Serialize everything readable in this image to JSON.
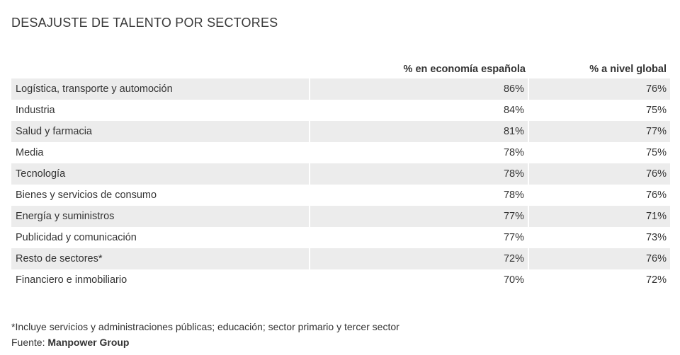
{
  "chart_data": {
    "type": "table",
    "title": "DESAJUSTE DE TALENTO POR SECTORES",
    "columns": [
      "",
      "% en economía española",
      "% a nivel global"
    ],
    "series": [
      {
        "name": "% en economía española",
        "unit": "%"
      },
      {
        "name": "% a nivel global",
        "unit": "%"
      }
    ],
    "rows": [
      {
        "sector": "Logística, transporte y automoción",
        "spain": "86%",
        "global": "76%"
      },
      {
        "sector": "Industria",
        "spain": "84%",
        "global": "75%"
      },
      {
        "sector": "Salud y farmacia",
        "spain": "81%",
        "global": "77%"
      },
      {
        "sector": "Media",
        "spain": "78%",
        "global": "75%"
      },
      {
        "sector": "Tecnología",
        "spain": "78%",
        "global": "76%"
      },
      {
        "sector": "Bienes y servicios de consumo",
        "spain": "78%",
        "global": "76%"
      },
      {
        "sector": "Energía y suministros",
        "spain": "77%",
        "global": "71%"
      },
      {
        "sector": "Publicidad y comunicación",
        "spain": "77%",
        "global": "73%"
      },
      {
        "sector": "Resto de sectores*",
        "spain": "72%",
        "global": "76%"
      },
      {
        "sector": "Financiero e inmobiliario",
        "spain": "70%",
        "global": "72%"
      }
    ],
    "footnote": "*Incluye servicios y administraciones públicas; educación; sector primario y tercer sector",
    "source_label": "Fuente:",
    "source_name": "Manpower Group"
  },
  "colors": {
    "stripe": "#ececec",
    "text": "#333333"
  }
}
